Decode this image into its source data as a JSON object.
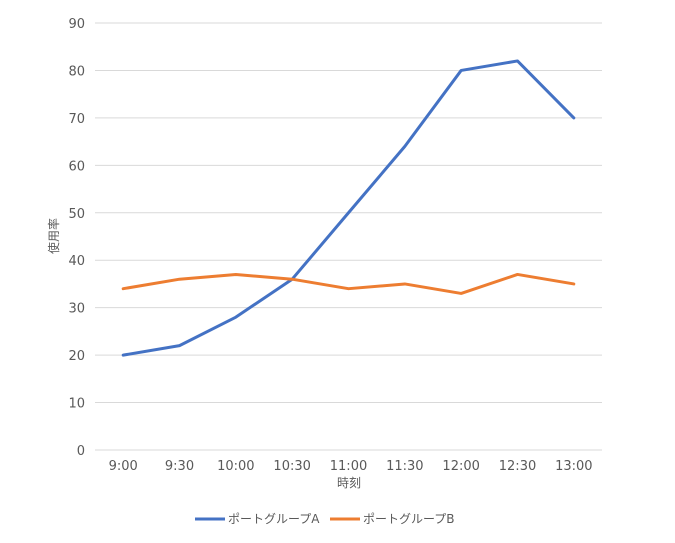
{
  "chart_data": {
    "type": "line",
    "title": "",
    "xlabel": "時刻",
    "ylabel": "使用率",
    "categories": [
      "9:00",
      "9:30",
      "10:00",
      "10:30",
      "11:00",
      "11:30",
      "12:00",
      "12:30",
      "13:00"
    ],
    "ylim": [
      0,
      90
    ],
    "yticks": [
      0,
      10,
      20,
      30,
      40,
      50,
      60,
      70,
      80,
      90
    ],
    "grid": true,
    "legend_position": "bottom",
    "series": [
      {
        "name": "ポートグループA",
        "color": "#4472C4",
        "values": [
          20,
          22,
          28,
          36,
          50,
          64,
          80,
          82,
          70
        ]
      },
      {
        "name": "ポートグループB",
        "color": "#ED7D31",
        "values": [
          34,
          36,
          37,
          36,
          34,
          35,
          33,
          37,
          35
        ]
      }
    ]
  }
}
